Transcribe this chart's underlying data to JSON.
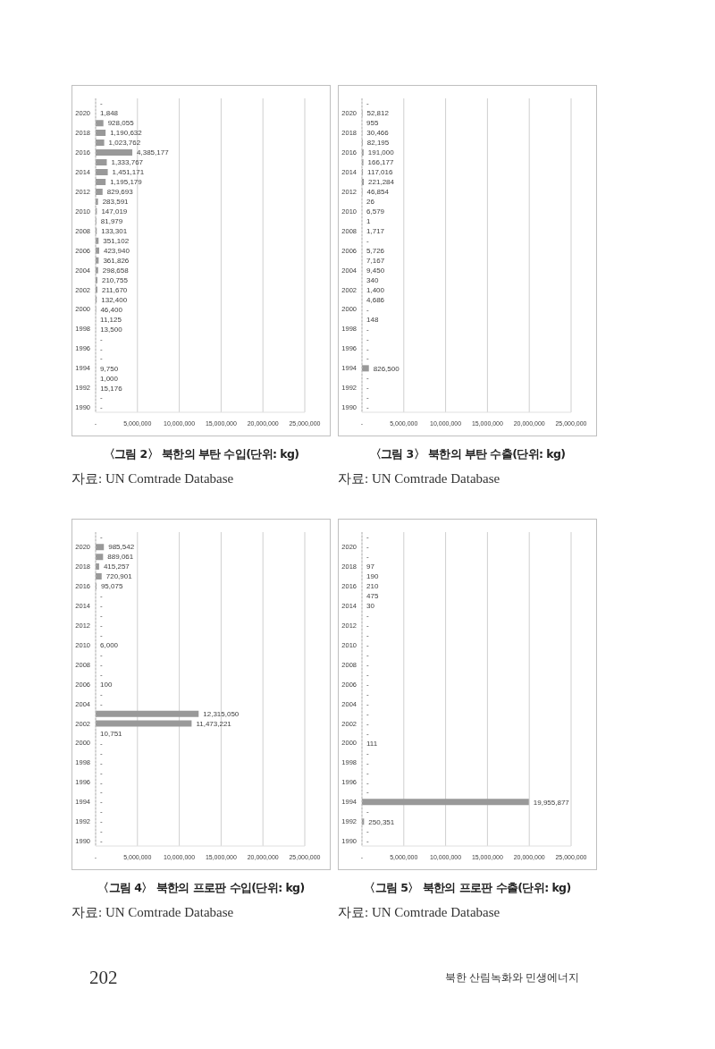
{
  "chart_data": [
    {
      "type": "bar",
      "orientation": "horizontal",
      "title": "〈그림 2〉 북한의 부탄 수입(단위: kg)",
      "annotations": [
        "자료: UN Comtrade Database"
      ],
      "categories": [
        null,
        "2020",
        null,
        "2018",
        null,
        "2016",
        null,
        "2014",
        null,
        "2012",
        null,
        "2010",
        null,
        "2008",
        null,
        "2006",
        null,
        "2004",
        null,
        "2002",
        null,
        "2000",
        null,
        "1998",
        null,
        "1996",
        null,
        "1994",
        null,
        "1992",
        null,
        "1990"
      ],
      "values": [
        0,
        1848,
        928055,
        1190632,
        1023762,
        4385177,
        1333767,
        1451171,
        1195179,
        829693,
        283591,
        147019,
        81979,
        133301,
        351102,
        423940,
        361826,
        298658,
        210755,
        211670,
        132400,
        46400,
        11125,
        13500,
        0,
        0,
        0,
        9750,
        1000,
        15176,
        0,
        0
      ],
      "value_labels": [
        "-",
        "1,848",
        "928,055",
        "1,190,632",
        "1,023,762",
        "4,385,177",
        "1,333,767",
        "1,451,171",
        "1,195,179",
        "829,693",
        "283,591",
        "147,019",
        "81,979",
        "133,301",
        "351,102",
        "423,940",
        "361,826",
        "298,658",
        "210,755",
        "211,670",
        "132,400",
        "46,400",
        "11,125",
        "13,500",
        "-",
        "-",
        "-",
        "9,750",
        "1,000",
        "15,176",
        "-",
        "-"
      ],
      "color": "#999999",
      "xlim": [
        0,
        25000000
      ],
      "xticks": [
        {
          "value": 0,
          "label": "-"
        },
        {
          "value": 5000000,
          "label": "5,000,000"
        },
        {
          "value": 10000000,
          "label": "10,000,000"
        },
        {
          "value": 15000000,
          "label": "15,000,000"
        },
        {
          "value": 20000000,
          "label": "20,000,000"
        },
        {
          "value": 25000000,
          "label": "25,000,000"
        }
      ],
      "grid": "x"
    },
    {
      "type": "bar",
      "orientation": "horizontal",
      "title": "〈그림 3〉 북한의 부탄 수출(단위: kg)",
      "annotations": [
        "자료: UN Comtrade Database"
      ],
      "categories": [
        null,
        "2020",
        null,
        "2018",
        null,
        "2016",
        null,
        "2014",
        null,
        "2012",
        null,
        "2010",
        null,
        "2008",
        null,
        "2006",
        null,
        "2004",
        null,
        "2002",
        null,
        "2000",
        null,
        "1998",
        null,
        "1996",
        null,
        "1994",
        null,
        "1992",
        null,
        "1990"
      ],
      "values": [
        0,
        52812,
        955,
        30466,
        82195,
        191000,
        166177,
        117016,
        221284,
        46854,
        26,
        6579,
        1,
        1717,
        0,
        5726,
        7167,
        9450,
        340,
        1400,
        4686,
        0,
        148,
        0,
        0,
        0,
        0,
        826500,
        0,
        0,
        0,
        0
      ],
      "value_labels": [
        "-",
        "52,812",
        "955",
        "30,466",
        "82,195",
        "191,000",
        "166,177",
        "117,016",
        "221,284",
        "46,854",
        "26",
        "6,579",
        "1",
        "1,717",
        "-",
        "5,726",
        "7,167",
        "9,450",
        "340",
        "1,400",
        "4,686",
        "-",
        "148",
        "-",
        "-",
        "-",
        "-",
        "826,500",
        "-",
        "-",
        "-",
        "-"
      ],
      "color": "#999999",
      "xlim": [
        0,
        25000000
      ],
      "xticks": [
        {
          "value": 0,
          "label": "-"
        },
        {
          "value": 5000000,
          "label": "5,000,000"
        },
        {
          "value": 10000000,
          "label": "10,000,000"
        },
        {
          "value": 15000000,
          "label": "15,000,000"
        },
        {
          "value": 20000000,
          "label": "20,000,000"
        },
        {
          "value": 25000000,
          "label": "25,000,000"
        }
      ],
      "grid": "x"
    },
    {
      "type": "bar",
      "orientation": "horizontal",
      "title": "〈그림 4〉 북한의 프로판 수입(단위: kg)",
      "annotations": [
        "자료: UN Comtrade Database"
      ],
      "categories": [
        null,
        "2020",
        null,
        "2018",
        null,
        "2016",
        null,
        "2014",
        null,
        "2012",
        null,
        "2010",
        null,
        "2008",
        null,
        "2006",
        null,
        "2004",
        null,
        "2002",
        null,
        "2000",
        null,
        "1998",
        null,
        "1996",
        null,
        "1994",
        null,
        "1992",
        null,
        "1990"
      ],
      "values": [
        0,
        985542,
        889061,
        415257,
        720901,
        95075,
        0,
        0,
        0,
        0,
        0,
        6000,
        0,
        0,
        0,
        100,
        0,
        0,
        12315050,
        11473221,
        10751,
        0,
        0,
        0,
        0,
        0,
        0,
        0,
        0,
        0,
        0,
        0
      ],
      "value_labels": [
        "-",
        "985,542",
        "889,061",
        "415,257",
        "720,901",
        "95,075",
        "-",
        "-",
        "-",
        "-",
        "-",
        "6,000",
        "-",
        "-",
        "-",
        "100",
        "-",
        "-",
        "12,315,050",
        "11,473,221",
        "10,751",
        "-",
        "-",
        "-",
        "-",
        "-",
        "-",
        "-",
        "-",
        "-",
        "-",
        "-"
      ],
      "color": "#999999",
      "xlim": [
        0,
        25000000
      ],
      "xticks": [
        {
          "value": 0,
          "label": "-"
        },
        {
          "value": 5000000,
          "label": "5,000,000"
        },
        {
          "value": 10000000,
          "label": "10,000,000"
        },
        {
          "value": 15000000,
          "label": "15,000,000"
        },
        {
          "value": 20000000,
          "label": "20,000,000"
        },
        {
          "value": 25000000,
          "label": "25,000,000"
        }
      ],
      "grid": "x"
    },
    {
      "type": "bar",
      "orientation": "horizontal",
      "title": "〈그림 5〉 북한의 프로판 수출(단위: kg)",
      "annotations": [
        "자료: UN Comtrade Database",
        "202",
        "북한 산림녹화와 민생에너지"
      ],
      "categories": [
        null,
        "2020",
        null,
        "2018",
        null,
        "2016",
        null,
        "2014",
        null,
        "2012",
        null,
        "2010",
        null,
        "2008",
        null,
        "2006",
        null,
        "2004",
        null,
        "2002",
        null,
        "2000",
        null,
        "1998",
        null,
        "1996",
        null,
        "1994",
        null,
        "1992",
        null,
        "1990"
      ],
      "values": [
        0,
        0,
        0,
        97,
        190,
        210,
        475,
        30,
        0,
        0,
        0,
        0,
        0,
        0,
        0,
        0,
        0,
        0,
        0,
        0,
        0,
        111,
        0,
        0,
        0,
        0,
        0,
        19955877,
        0,
        250351,
        0,
        0
      ],
      "value_labels": [
        "-",
        "-",
        "-",
        "97",
        "190",
        "210",
        "475",
        "30",
        "-",
        "-",
        "-",
        "-",
        "-",
        "-",
        "-",
        "-",
        "-",
        "-",
        "-",
        "-",
        "-",
        "111",
        "-",
        "-",
        "-",
        "-",
        "-",
        "19,955,877",
        "-",
        "250,351",
        "-",
        "-"
      ],
      "color": "#999999",
      "xlim": [
        0,
        25000000
      ],
      "xticks": [
        {
          "value": 0,
          "label": "-"
        },
        {
          "value": 5000000,
          "label": "5,000,000"
        },
        {
          "value": 10000000,
          "label": "10,000,000"
        },
        {
          "value": 15000000,
          "label": "15,000,000"
        },
        {
          "value": 20000000,
          "label": "20,000,000"
        },
        {
          "value": 25000000,
          "label": "25,000,000"
        }
      ],
      "grid": "x"
    }
  ]
}
